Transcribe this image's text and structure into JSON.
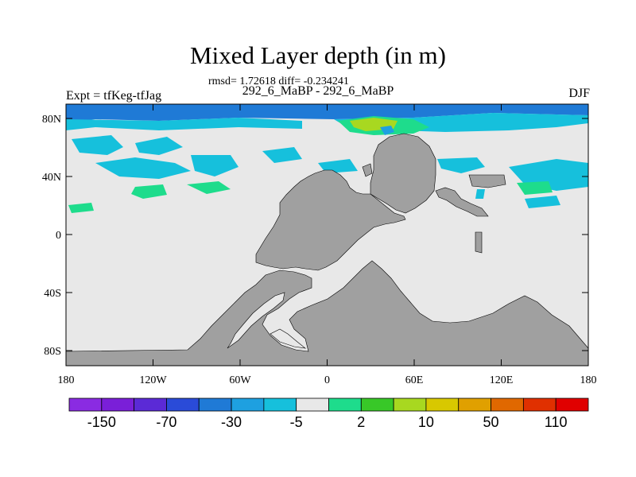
{
  "title": "Mixed Layer depth (in m)",
  "stats": "rmsd= 1.72618 diff= -0.234241",
  "subtitle": "292_6_MaBP - 292_6_MaBP",
  "left_label": "Expt = tfKeg-tfJag",
  "right_label": "DJF",
  "y_ticks": [
    "80N",
    "40N",
    "0",
    "40S",
    "80S"
  ],
  "x_ticks": [
    "180",
    "120W",
    "60W",
    "0",
    "60E",
    "120E",
    "180"
  ],
  "colorbar": {
    "labels": [
      "-150",
      "-70",
      "-30",
      "-5",
      "2",
      "10",
      "50",
      "110"
    ],
    "colors": [
      "#8a2be2",
      "#7a1fd8",
      "#5b2ad6",
      "#2a4bd8",
      "#1f7ad6",
      "#1ea0e0",
      "#16c0dc",
      "#e8e8e8",
      "#1edc8c",
      "#38c828",
      "#a8d820",
      "#d8c800",
      "#e0a000",
      "#e06800",
      "#e03000",
      "#e00000"
    ]
  },
  "colors": {
    "land": "#a0a0a0",
    "ocean": "#e8e8e8",
    "blue_dark": "#1f7ad6",
    "blue_mid": "#1ea0e0",
    "cyan": "#16c0dc",
    "green": "#1edc8c",
    "lime": "#a8d820"
  }
}
